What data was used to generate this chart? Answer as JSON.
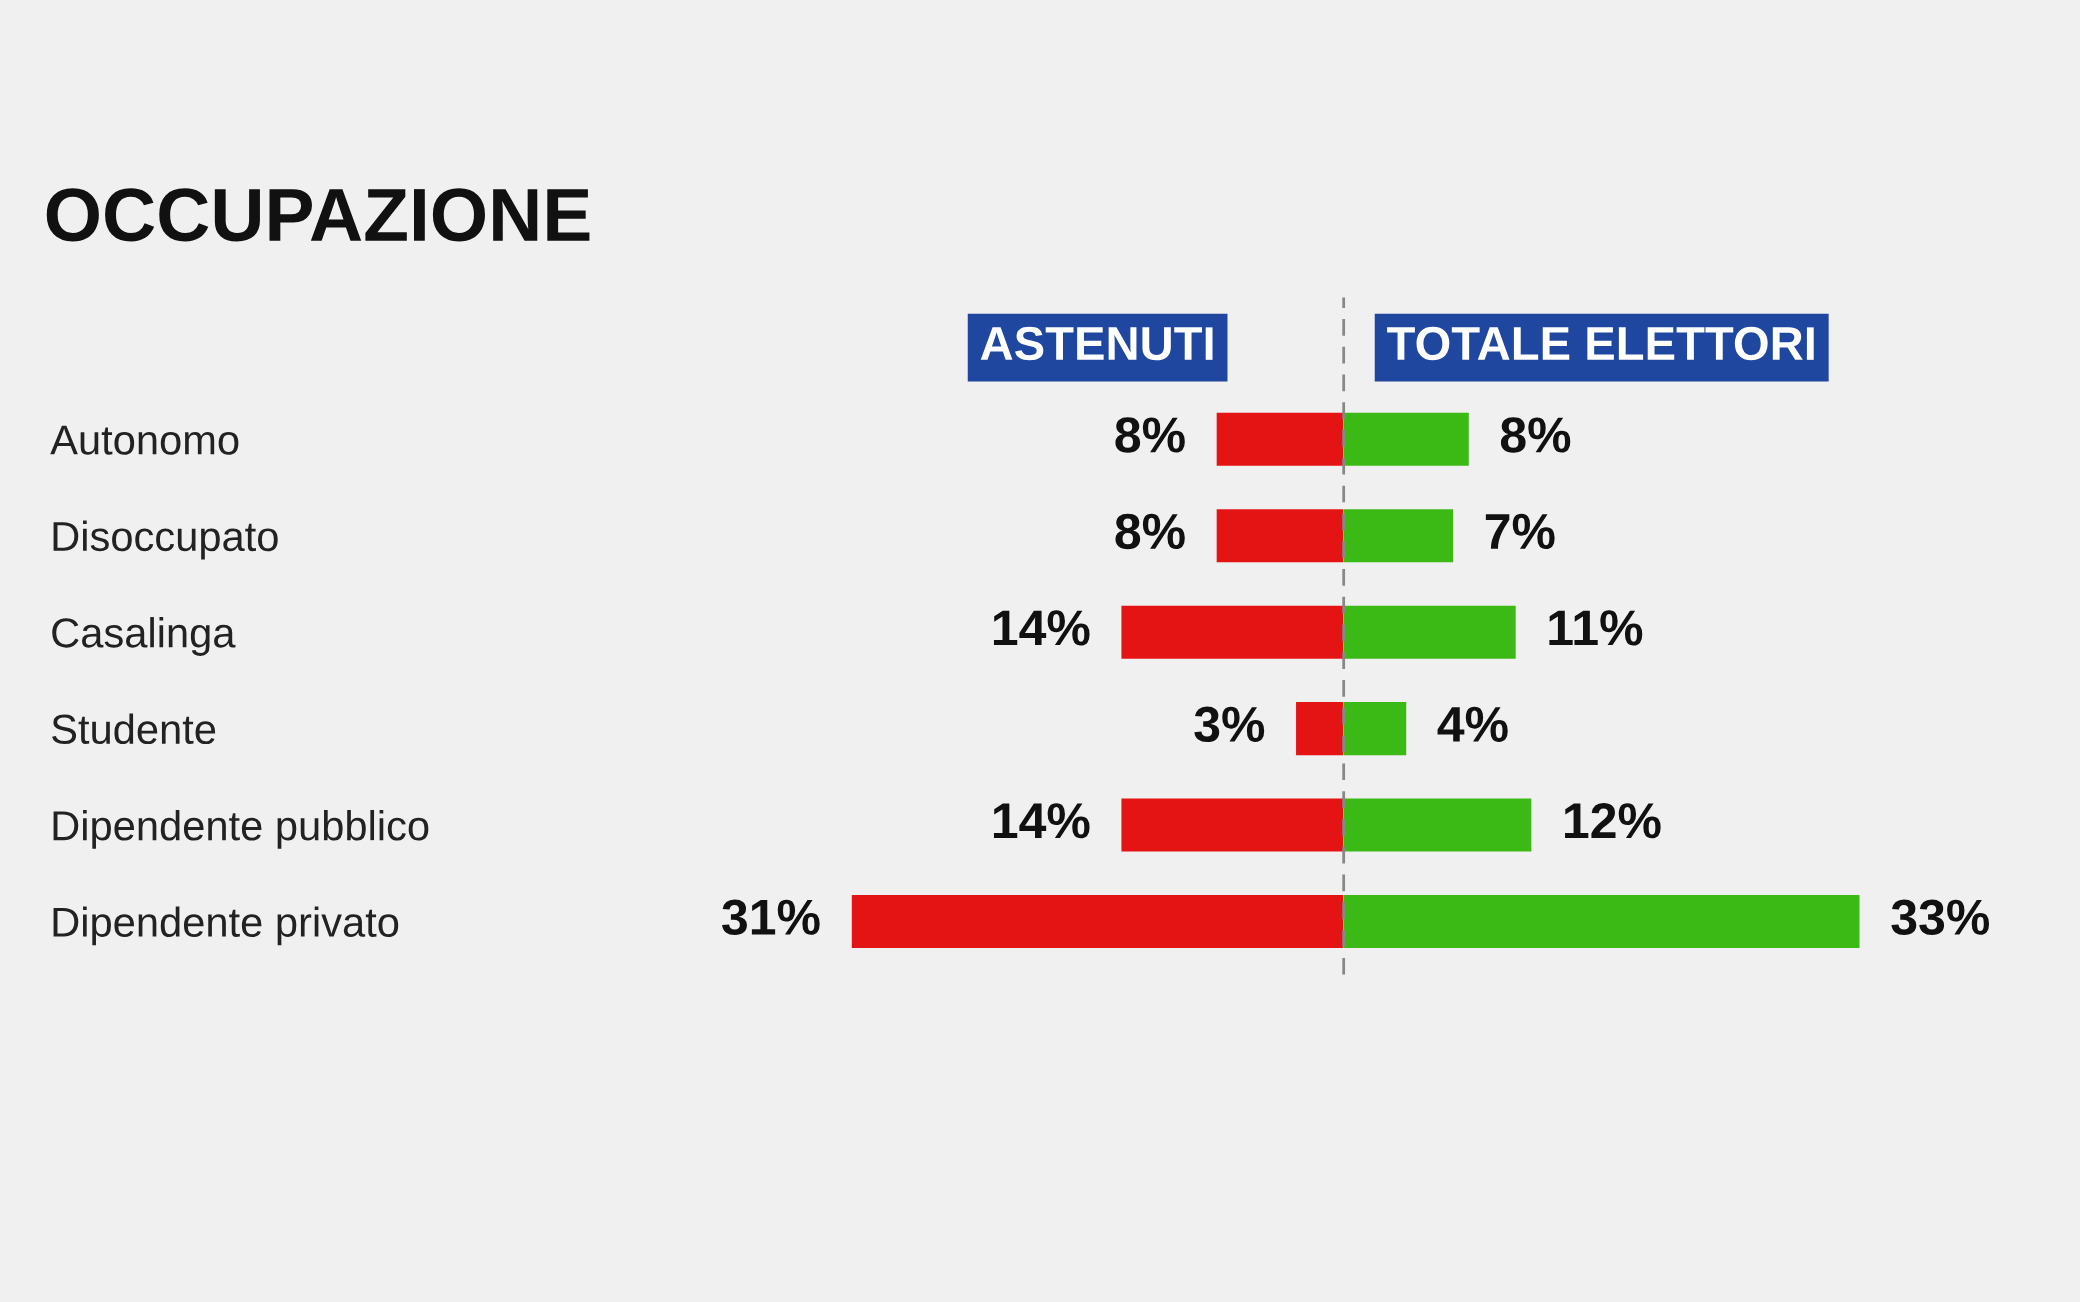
{
  "chart_data": [
    {
      "type": "bar",
      "orientation": "horizontal",
      "title": "OCCUPAZIONE",
      "subtitle": "ASTENUTI",
      "categories": [
        "Autonomo",
        "Disoccupato",
        "Casalinga",
        "Studente",
        "Dipendente pubblico",
        "Dipendente privato"
      ],
      "values": [
        8,
        8,
        14,
        3,
        14,
        31
      ],
      "color": "#e41414",
      "value_labels": [
        "8%",
        "8%",
        "14%",
        "3%",
        "14%",
        "31%"
      ],
      "xlim": [
        31,
        0
      ],
      "tick_labels": "y",
      "grid": false
    },
    {
      "type": "bar",
      "orientation": "horizontal",
      "subtitle": "TOTALE ELETTORI",
      "categories": [
        null,
        null,
        null,
        null,
        null,
        null
      ],
      "values": [
        8,
        7,
        11,
        4,
        12,
        33
      ],
      "color": "#3bba16",
      "value_labels": [
        "8%",
        "7%",
        "11%",
        "4%",
        "12%",
        "33%"
      ],
      "xlim": [
        0,
        33
      ],
      "tick_labels": false,
      "grid": false,
      "ref_lines": [
        {
          "axis": "x",
          "value": 0,
          "color": "#888888",
          "line_style": "dashed"
        }
      ]
    }
  ]
}
